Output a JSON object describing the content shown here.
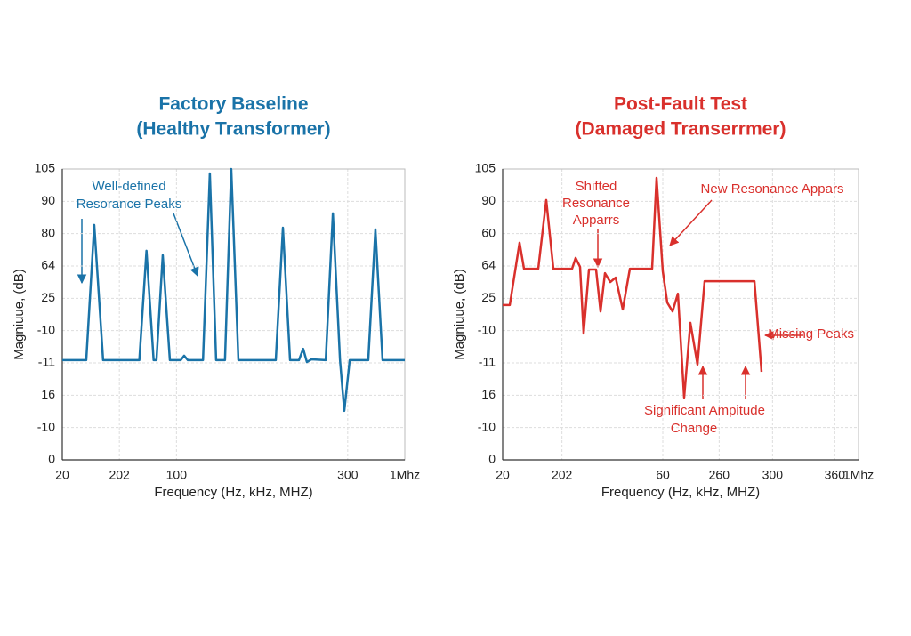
{
  "chart_data": [
    {
      "type": "line",
      "title": [
        "Factory Baseline",
        "(Healthy Transformer)"
      ],
      "ylabel": "Magniuue, (dB)",
      "xlabel": "Frequency (Hz, kHz, MHZ)",
      "annotations": [
        {
          "lines": [
            "Well-defined",
            "Resorance Peaks"
          ]
        }
      ],
      "xlim": [
        0,
        12
      ],
      "xticks": [
        {
          "value": 0,
          "label": "20"
        },
        {
          "value": 2,
          "label": "202"
        },
        {
          "value": 4,
          "label": "100"
        },
        {
          "value": 10,
          "label": "300"
        },
        {
          "value": 12,
          "label": "1Mhz"
        }
      ],
      "ylim": [
        0,
        105
      ],
      "yticks": [
        0,
        {
          "value": 11.67,
          "label": "-10"
        },
        {
          "value": 23.33,
          "label": "16"
        },
        {
          "value": 35,
          "label": "-11"
        },
        {
          "value": 46.67,
          "label": "-10"
        },
        {
          "value": 58.33,
          "label": "25"
        },
        {
          "value": 70,
          "label": "64"
        },
        {
          "value": 81.67,
          "label": "80"
        },
        {
          "value": 93.33,
          "label": "90"
        },
        105
      ],
      "grid": true,
      "series": [
        {
          "color": "#1a73a8",
          "x": [
            0,
            0.84,
            1.12,
            1.43,
            2.7,
            2.95,
            3.2,
            3.3,
            3.52,
            3.77,
            4.15,
            4.27,
            4.4,
            4.93,
            5.17,
            5.39,
            5.7,
            5.92,
            6.17,
            7.48,
            7.73,
            7.98,
            8.29,
            8.44,
            8.57,
            8.73,
            9.23,
            9.48,
            9.73,
            9.88,
            10.07,
            10.72,
            10.97,
            11.22,
            12
          ],
          "values": [
            36,
            36,
            84.8,
            36,
            36,
            75.5,
            36,
            36,
            73.9,
            36,
            36,
            37.6,
            36,
            36,
            103.4,
            36,
            36,
            105,
            36,
            36,
            83.8,
            36,
            36,
            40.1,
            35.3,
            36.3,
            36,
            89,
            36,
            17.7,
            36,
            36,
            83.2,
            36,
            36
          ]
        }
      ]
    },
    {
      "type": "line",
      "title": [
        "Post-Fault Test",
        "(Damaged Transerrmer)"
      ],
      "ylabel": "Magniuue, (dB)",
      "xlabel": "Frequency (Hz, kHz, MHZ)",
      "annotations": [
        {
          "lines": [
            "Shifted",
            "Resonance",
            "Apparrs"
          ]
        },
        {
          "lines": [
            "New Resonance Appars"
          ]
        },
        {
          "lines": [
            "Missing Peaks"
          ]
        },
        {
          "lines": [
            "Significant Ampitude",
            "Change"
          ]
        }
      ],
      "xlim": [
        0,
        12
      ],
      "xticks": [
        {
          "value": 0,
          "label": "20"
        },
        {
          "value": 2,
          "label": "202"
        },
        {
          "value": 5.4,
          "label": "60"
        },
        {
          "value": 7.3,
          "label": "260"
        },
        {
          "value": 9.1,
          "label": "300"
        },
        {
          "value": 11.2,
          "label": "360"
        },
        {
          "value": 12,
          "label": "1Mhz"
        }
      ],
      "ylim": [
        0,
        105
      ],
      "yticks": [
        0,
        {
          "value": 11.67,
          "label": "-10"
        },
        {
          "value": 23.33,
          "label": "16"
        },
        {
          "value": 35,
          "label": "-11"
        },
        {
          "value": 46.67,
          "label": "-10"
        },
        {
          "value": 58.33,
          "label": "25"
        },
        {
          "value": 70,
          "label": "64"
        },
        {
          "value": 81.67,
          "label": "60"
        },
        {
          "value": 93.33,
          "label": "90"
        },
        105
      ],
      "grid": true,
      "series": [
        {
          "color": "#d9302c",
          "x": [
            0,
            0.24,
            0.57,
            0.72,
            1.05,
            1.2,
            1.47,
            1.71,
            2.34,
            2.46,
            2.61,
            2.73,
            2.91,
            3.15,
            3.3,
            3.45,
            3.63,
            3.81,
            4.05,
            4.29,
            5.04,
            5.19,
            5.4,
            5.55,
            5.73,
            5.91,
            6.12,
            6.33,
            6.57,
            6.81,
            8.49,
            8.73
          ],
          "values": [
            55.9,
            55.9,
            78.4,
            69,
            69,
            69,
            93.8,
            69,
            69,
            72.9,
            69.7,
            45.6,
            68.7,
            68.7,
            53.6,
            67.4,
            64.2,
            65.8,
            54.3,
            69,
            69,
            101.8,
            68.1,
            56.8,
            53.6,
            60,
            22.5,
            49.5,
            34.4,
            64.5,
            64.5,
            31.8
          ]
        }
      ]
    }
  ]
}
